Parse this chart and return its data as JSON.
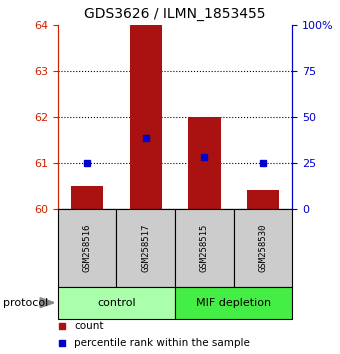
{
  "title": "GDS3626 / ILMN_1853455",
  "samples": [
    "GSM258516",
    "GSM258517",
    "GSM258515",
    "GSM258530"
  ],
  "bar_tops": [
    60.5,
    64.0,
    62.0,
    60.4
  ],
  "bar_base": 60,
  "percentile_values": [
    61.0,
    61.55,
    61.12,
    61.0
  ],
  "ylim": [
    60,
    64
  ],
  "yticks_left": [
    60,
    61,
    62,
    63,
    64
  ],
  "yticks_right": [
    0,
    25,
    50,
    75,
    100
  ],
  "bar_color": "#aa1111",
  "percentile_color": "#0000cc",
  "groups": [
    {
      "label": "control",
      "span": [
        0,
        2
      ],
      "color": "#aaffaa"
    },
    {
      "label": "MIF depletion",
      "span": [
        2,
        4
      ],
      "color": "#44ee44"
    }
  ],
  "protocol_label": "protocol",
  "legend_count_label": "count",
  "legend_percentile_label": "percentile rank within the sample",
  "dotted_yticks": [
    61,
    62,
    63
  ],
  "bar_width": 0.55,
  "sample_box_color": "#cccccc",
  "background_color": "#ffffff"
}
